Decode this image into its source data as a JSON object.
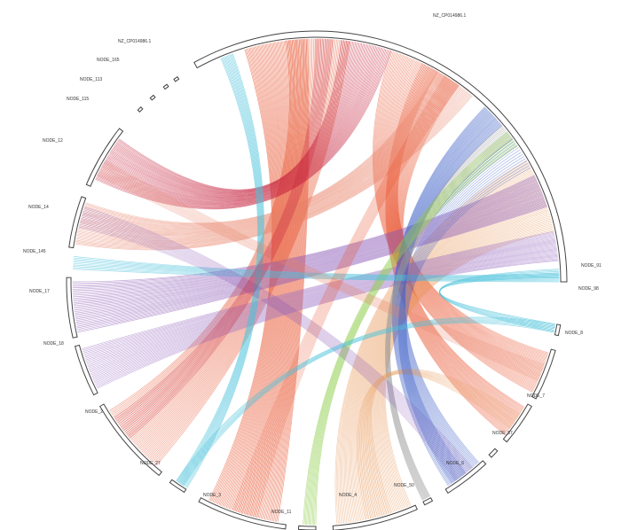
{
  "diagram": {
    "type": "circos-synteny",
    "sequences": [
      {
        "id": "ref",
        "label": "NZ_CP014986.1"
      },
      {
        "id": "n91",
        "label": "NODE_91"
      },
      {
        "id": "n98",
        "label": "NODE_98"
      },
      {
        "id": "n8",
        "label": "NODE_8"
      },
      {
        "id": "n7",
        "label": "NODE_7"
      },
      {
        "id": "n87",
        "label": "NODE_87"
      },
      {
        "id": "n6",
        "label": "NODE_6"
      },
      {
        "id": "n50",
        "label": "NODE_50"
      },
      {
        "id": "n4",
        "label": "NODE_4"
      },
      {
        "id": "n11",
        "label": "NODE_11"
      },
      {
        "id": "n3",
        "label": "NODE_3"
      },
      {
        "id": "n27",
        "label": "NODE_27"
      },
      {
        "id": "n2",
        "label": "NODE_2"
      },
      {
        "id": "n18",
        "label": "NODE_18"
      },
      {
        "id": "n17",
        "label": "NODE_17"
      },
      {
        "id": "n145",
        "label": "NODE_145"
      },
      {
        "id": "n14",
        "label": "NODE_14"
      },
      {
        "id": "n12",
        "label": "NODE_12"
      },
      {
        "id": "n115",
        "label": "NODE_115"
      },
      {
        "id": "n113",
        "label": "NODE_113"
      },
      {
        "id": "n165",
        "label": "NODE_165"
      },
      {
        "id": "plasmid",
        "label": "NZ_CP014986.1"
      }
    ],
    "link_colors": {
      "red": "#e8502a",
      "crimson": "#c8263f",
      "salmon": "#e9846a",
      "orange": "#e89a5a",
      "purple": "#8a55b5",
      "violet": "#9b6fc4",
      "blue": "#3d5fc8",
      "cyan": "#4cc3dc",
      "green": "#8fce4c",
      "gray": "#9a9a9a"
    }
  }
}
